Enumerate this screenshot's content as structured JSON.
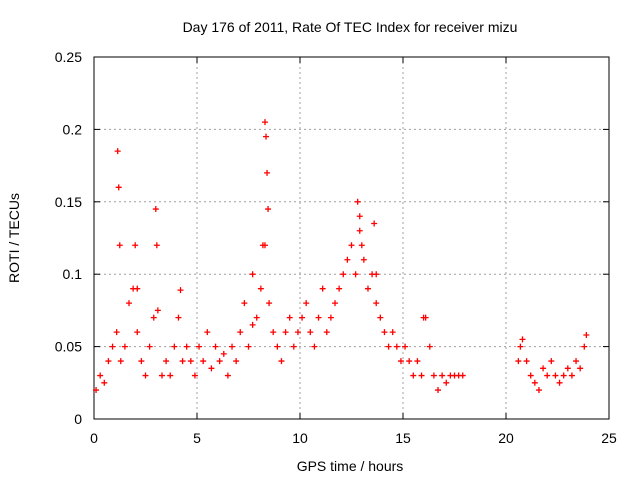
{
  "chart_data": {
    "type": "scatter",
    "title": "Day 176 of 2011, Rate Of TEC Index for receiver mizu",
    "xlabel": "GPS time / hours",
    "ylabel": "ROTI / TECUs",
    "xlim": [
      0,
      25
    ],
    "ylim": [
      0,
      0.25
    ],
    "xticks": [
      0,
      5,
      10,
      15,
      20,
      25
    ],
    "yticks": [
      0,
      0.05,
      0.1,
      0.15,
      0.2,
      0.25
    ],
    "xtick_labels": [
      "0",
      "5",
      "10",
      "15",
      "20",
      "25"
    ],
    "ytick_labels": [
      "0",
      "0.05",
      "0.1",
      "0.15",
      "0.2",
      "0.25"
    ],
    "grid": true,
    "marker": "+",
    "color": "#ff0000",
    "series": [
      {
        "x": [
          0.1,
          0.3,
          0.5,
          0.7,
          0.9,
          1.1,
          1.3,
          1.5,
          1.7,
          1.9,
          2.1,
          2.3,
          2.5,
          2.7,
          2.9,
          3.1,
          3.3,
          3.5,
          3.7,
          3.9,
          4.1,
          4.3,
          4.5,
          4.7,
          4.9,
          5.1,
          5.3,
          5.5,
          5.7,
          5.9,
          6.1,
          6.3,
          6.5,
          6.7,
          6.9,
          7.1,
          7.3,
          7.5,
          7.7,
          7.9,
          8.1,
          8.3,
          8.5,
          8.7,
          8.9,
          9.1,
          9.3,
          9.5,
          9.7,
          9.9,
          10.1,
          10.3,
          10.5,
          10.7,
          10.9,
          11.1,
          11.3,
          11.5,
          11.7,
          11.9,
          12.1,
          12.3,
          12.5,
          12.7,
          12.9,
          13.1,
          13.3,
          13.5,
          13.7,
          13.9,
          14.1,
          14.3,
          14.5,
          14.7,
          14.9,
          15.1,
          15.3,
          15.5,
          15.7,
          15.9,
          16.1,
          16.3,
          16.5,
          16.7,
          16.9,
          17.1,
          17.3,
          17.5,
          17.7,
          17.9,
          20.6,
          20.8,
          21.0,
          21.2,
          21.4,
          21.6,
          21.8,
          22.0,
          22.2,
          22.4,
          22.6,
          22.8,
          23.0,
          23.2,
          23.4,
          23.6,
          23.8,
          1.15,
          1.2,
          1.25,
          2.0,
          2.1,
          3.0,
          3.05,
          4.2,
          8.3,
          8.35,
          8.4,
          8.45,
          8.2,
          7.7,
          12.8,
          12.9,
          13.0,
          13.6,
          13.7,
          16.0,
          20.7,
          23.9
        ],
        "y": [
          0.02,
          0.03,
          0.025,
          0.04,
          0.05,
          0.06,
          0.04,
          0.05,
          0.08,
          0.09,
          0.06,
          0.04,
          0.03,
          0.05,
          0.07,
          0.075,
          0.03,
          0.04,
          0.03,
          0.05,
          0.07,
          0.04,
          0.05,
          0.04,
          0.03,
          0.05,
          0.04,
          0.06,
          0.035,
          0.05,
          0.04,
          0.045,
          0.03,
          0.05,
          0.04,
          0.06,
          0.08,
          0.05,
          0.065,
          0.07,
          0.09,
          0.12,
          0.08,
          0.06,
          0.05,
          0.04,
          0.06,
          0.07,
          0.05,
          0.06,
          0.07,
          0.08,
          0.06,
          0.05,
          0.07,
          0.09,
          0.06,
          0.07,
          0.08,
          0.09,
          0.1,
          0.11,
          0.12,
          0.1,
          0.14,
          0.11,
          0.09,
          0.1,
          0.08,
          0.07,
          0.06,
          0.05,
          0.06,
          0.05,
          0.04,
          0.05,
          0.04,
          0.03,
          0.04,
          0.03,
          0.07,
          0.05,
          0.03,
          0.02,
          0.03,
          0.025,
          0.03,
          0.03,
          0.03,
          0.03,
          0.04,
          0.055,
          0.04,
          0.03,
          0.025,
          0.02,
          0.035,
          0.03,
          0.04,
          0.03,
          0.025,
          0.03,
          0.035,
          0.03,
          0.04,
          0.035,
          0.05,
          0.185,
          0.16,
          0.12,
          0.12,
          0.09,
          0.145,
          0.12,
          0.089,
          0.205,
          0.195,
          0.17,
          0.145,
          0.12,
          0.1,
          0.15,
          0.13,
          0.12,
          0.135,
          0.1,
          0.07,
          0.05,
          0.058
        ]
      }
    ]
  }
}
